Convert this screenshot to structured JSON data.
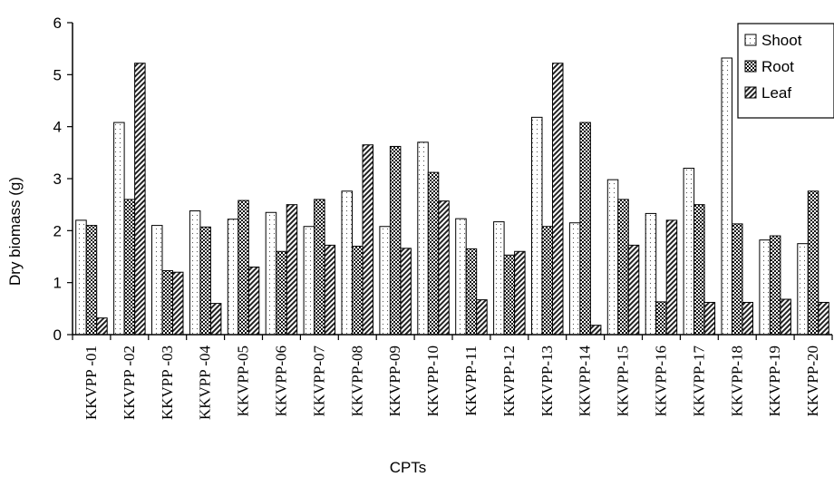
{
  "chart_data": {
    "type": "bar",
    "xlabel": "CPTs",
    "ylabel": "Dry biomass (g)",
    "ylim": [
      0,
      6
    ],
    "yticks": [
      "0",
      "1",
      "2",
      "3",
      "4",
      "5",
      "6"
    ],
    "grid": false,
    "legend_position": "top-right",
    "categories": [
      "KKVPP -01",
      "KKVPP -02",
      "KKVPP -03",
      "KKVPP -04",
      "KKVPP-05",
      "KKVPP-06",
      "KKVPP-07",
      "KKVPP-08",
      "KKVPP-09",
      "KKVPP-10",
      "KKVPP-11",
      "KKVPP-12",
      "KKVPP-13",
      "KKVPP-14",
      "KKVPP-15",
      "KKVPP-16",
      "KKVPP-17",
      "KKVPP-18",
      "KKVPP-19",
      "KKVPP-20"
    ],
    "series": [
      {
        "name": "Shoot",
        "pattern": "dots",
        "values": [
          2.2,
          4.08,
          2.1,
          2.38,
          2.22,
          2.35,
          2.08,
          2.76,
          2.08,
          3.7,
          2.23,
          2.17,
          4.18,
          2.15,
          2.98,
          2.33,
          3.2,
          5.32,
          1.82,
          1.75
        ]
      },
      {
        "name": "Root",
        "pattern": "checker",
        "values": [
          2.1,
          2.6,
          1.23,
          2.07,
          2.58,
          1.6,
          2.6,
          1.7,
          3.62,
          3.12,
          1.65,
          1.53,
          2.08,
          4.08,
          2.6,
          0.63,
          2.5,
          2.13,
          1.9,
          2.76
        ]
      },
      {
        "name": "Leaf",
        "pattern": "hatch",
        "values": [
          0.32,
          5.22,
          1.2,
          0.6,
          1.3,
          2.5,
          1.72,
          3.65,
          1.66,
          2.57,
          0.67,
          1.6,
          5.22,
          0.18,
          1.72,
          2.2,
          0.62,
          0.62,
          0.68,
          0.62
        ]
      }
    ]
  }
}
